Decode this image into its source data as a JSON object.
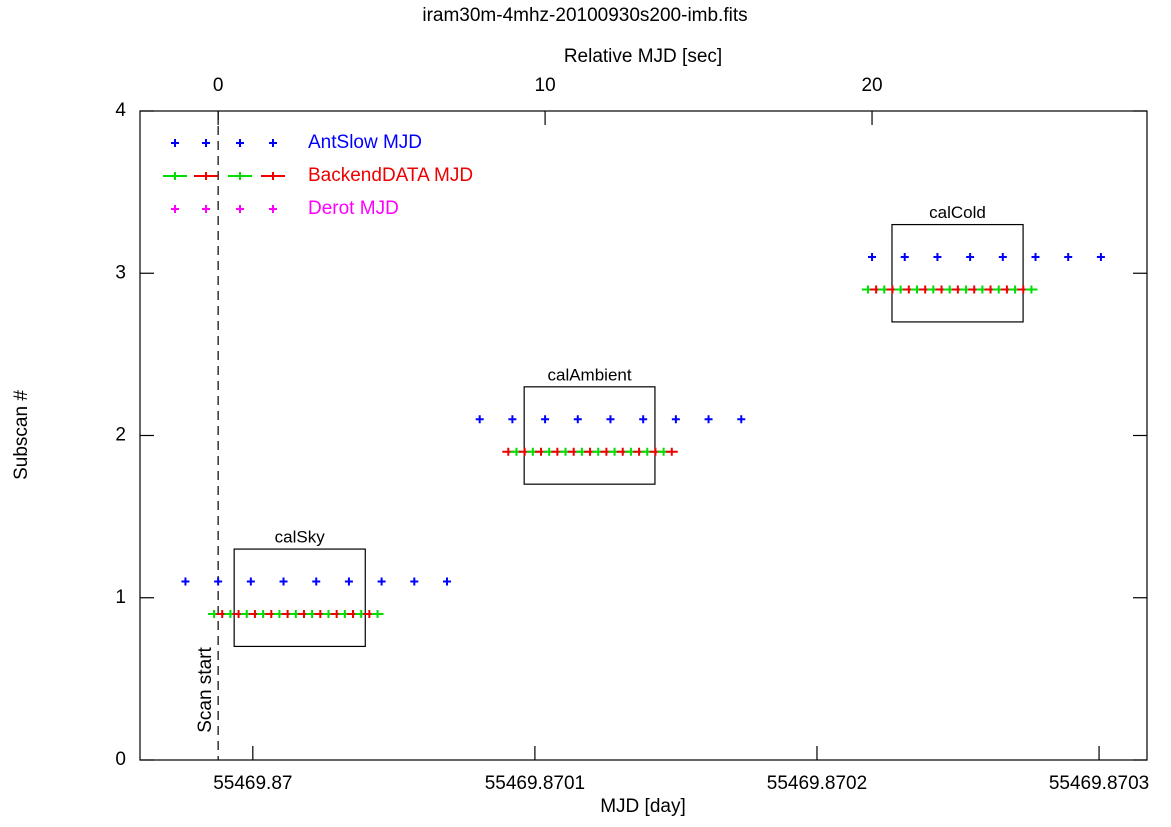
{
  "chart_data": {
    "type": "scatter",
    "title": "iram30m-4mhz-20100930s200-imb.fits",
    "x_label": "MJD [day]",
    "x2_label": "Relative MJD [sec]",
    "y_label": "Subscan #",
    "xlim": [
      -2.39,
      28.41
    ],
    "xticks": [
      0,
      10,
      20
    ],
    "x2lim": [
      55469.86996,
      55469.870317
    ],
    "x2ticks": [
      55469.87,
      55469.8701,
      55469.8702,
      55469.8703
    ],
    "ylim": [
      0,
      4
    ],
    "yticks": [
      0,
      1,
      2,
      3,
      4
    ],
    "legend": "upper left",
    "series": [
      {
        "name": "AntSlow MJD",
        "color": "#0000ff",
        "x": [
          -1,
          0,
          1,
          2,
          3,
          4,
          5,
          6,
          7,
          8,
          9,
          10,
          11,
          12,
          13,
          14,
          15,
          16,
          20,
          21,
          22,
          23,
          24,
          25,
          26,
          27
        ],
        "values": [
          1.1,
          1.1,
          1.1,
          1.1,
          1.1,
          1.1,
          1.1,
          1.1,
          1.1,
          2.1,
          2.1,
          2.1,
          2.1,
          2.1,
          2.1,
          2.1,
          2.1,
          2.1,
          3.1,
          3.1,
          3.1,
          3.1,
          3.1,
          3.1,
          3.1,
          3.1
        ]
      },
      {
        "name": "BackendDATA MJD",
        "colors": [
          "#00dd00",
          "#ee0000"
        ],
        "x": [
          -0.125,
          0.125,
          0.375,
          0.625,
          0.875,
          1.125,
          1.375,
          1.625,
          1.875,
          2.125,
          2.375,
          2.625,
          2.875,
          3.125,
          3.375,
          3.625,
          3.875,
          4.125,
          4.375,
          4.625,
          4.875,
          8.875,
          9.125,
          9.375,
          9.625,
          9.875,
          10.125,
          10.375,
          10.625,
          10.875,
          11.125,
          11.375,
          11.625,
          11.875,
          12.125,
          12.375,
          12.625,
          12.875,
          13.125,
          13.375,
          13.625,
          13.875,
          19.875,
          20.125,
          20.375,
          20.625,
          20.875,
          21.125,
          21.375,
          21.625,
          21.875,
          22.125,
          22.375,
          22.625,
          22.875,
          23.125,
          23.375,
          23.625,
          23.875,
          24.125,
          24.375,
          24.625,
          24.875
        ],
        "values": [
          0.9,
          0.9,
          0.9,
          0.9,
          0.9,
          0.9,
          0.9,
          0.9,
          0.9,
          0.9,
          0.9,
          0.9,
          0.9,
          0.9,
          0.9,
          0.9,
          0.9,
          0.9,
          0.9,
          0.9,
          0.9,
          1.9,
          1.9,
          1.9,
          1.9,
          1.9,
          1.9,
          1.9,
          1.9,
          1.9,
          1.9,
          1.9,
          1.9,
          1.9,
          1.9,
          1.9,
          1.9,
          1.9,
          1.9,
          1.9,
          1.9,
          1.9,
          2.9,
          2.9,
          2.9,
          2.9,
          2.9,
          2.9,
          2.9,
          2.9,
          2.9,
          2.9,
          2.9,
          2.9,
          2.9,
          2.9,
          2.9,
          2.9,
          2.9,
          2.9,
          2.9,
          2.9,
          2.9
        ]
      },
      {
        "name": "Derot MJD",
        "color": "#ff00ff",
        "x": [],
        "values": []
      }
    ],
    "boxes": [
      {
        "label": "calSky",
        "x": [
          0.49,
          4.5
        ],
        "y": [
          0.7,
          1.3
        ]
      },
      {
        "label": "calAmbient",
        "x": [
          9.36,
          13.36
        ],
        "y": [
          1.7,
          2.3
        ]
      },
      {
        "label": "calCold",
        "x": [
          20.61,
          24.62
        ],
        "y": [
          2.7,
          3.3
        ]
      }
    ],
    "scan_start": {
      "label": "Scan start",
      "x": 0
    }
  }
}
